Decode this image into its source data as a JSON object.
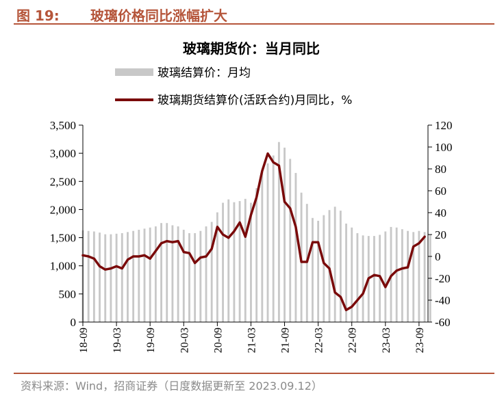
{
  "figure": {
    "number": "图 19:",
    "title": "玻璃价格同比涨幅扩大",
    "source": "资料来源：Wind，招商证券（日度数据更新至 2023.09.12）"
  },
  "chart_data": {
    "type": "bar+line",
    "title": "玻璃期货价：当月同比",
    "legend_position": "top",
    "grid": false,
    "x_tick_labels": [
      "18-09",
      "19-03",
      "19-09",
      "20-03",
      "20-09",
      "21-03",
      "21-09",
      "22-03",
      "22-09",
      "23-03",
      "23-09"
    ],
    "y_left": {
      "ticks": [
        "0",
        "500",
        "1,000",
        "1,500",
        "2,000",
        "2,500",
        "3,000",
        "3,500"
      ],
      "ylim": [
        0,
        3500
      ]
    },
    "y_right": {
      "ticks": [
        "-60",
        "-40",
        "-20",
        "0",
        "20",
        "40",
        "60",
        "80",
        "100",
        "120"
      ],
      "ylim": [
        -60,
        120
      ]
    },
    "series": [
      {
        "name": "玻璃结算价：月均",
        "type": "bar",
        "axis": "left",
        "color": "#c8c8c8",
        "start": "2018-09",
        "values": [
          1630,
          1620,
          1610,
          1590,
          1560,
          1560,
          1570,
          1580,
          1600,
          1620,
          1640,
          1660,
          1680,
          1700,
          1760,
          1760,
          1720,
          1700,
          1640,
          1580,
          1580,
          1620,
          1700,
          1780,
          1950,
          2120,
          2180,
          2130,
          2150,
          2190,
          2120,
          2380,
          2680,
          2820,
          2960,
          3200,
          3100,
          2900,
          2650,
          2300,
          2100,
          1850,
          1800,
          1900,
          1990,
          2050,
          1980,
          1750,
          1680,
          1580,
          1540,
          1530,
          1530,
          1550,
          1610,
          1690,
          1680,
          1650,
          1620,
          1600,
          1620,
          1600,
          1550
        ]
      },
      {
        "name": "玻璃期货结算价(活跃合约)月同比，%",
        "type": "line",
        "axis": "right",
        "color": "#7a0a0a",
        "start": "2018-09",
        "values": [
          1,
          0,
          -2,
          -9,
          -12,
          -11,
          -9,
          -11,
          -3,
          0,
          0,
          1,
          -2,
          5,
          12,
          14,
          13,
          14,
          4,
          3,
          -6,
          -1,
          0,
          7,
          27,
          20,
          17,
          23,
          31,
          18,
          38,
          54,
          78,
          94,
          86,
          83,
          50,
          44,
          27,
          -5,
          -5,
          13,
          13,
          -6,
          -11,
          -33,
          -37,
          -49,
          -46,
          -40,
          -34,
          -20,
          -17,
          -18,
          -28,
          -18,
          -13,
          -11,
          -10,
          9,
          12,
          18
        ]
      }
    ]
  }
}
